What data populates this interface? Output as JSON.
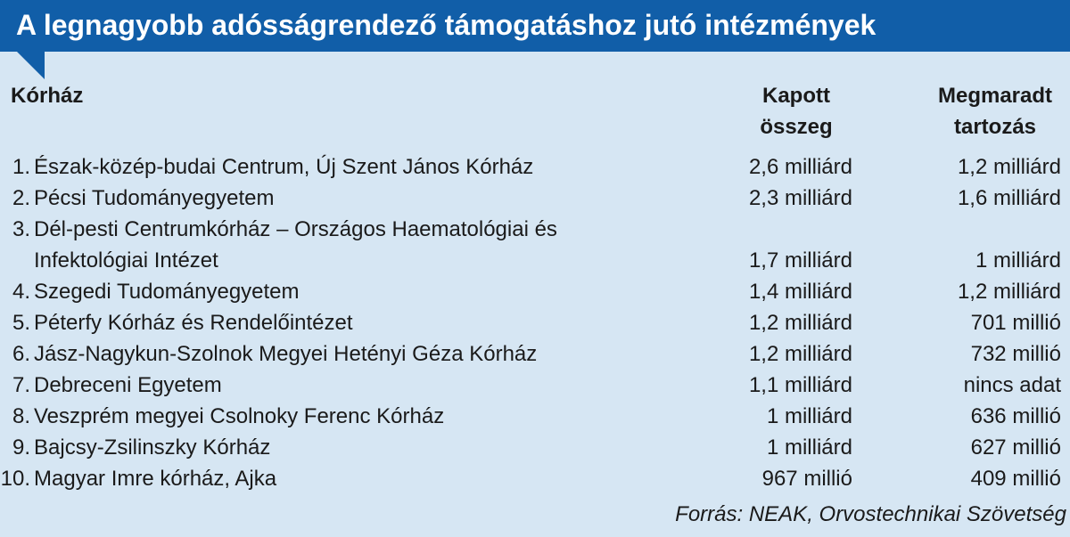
{
  "header": {
    "title": "A legnagyobb adósságrendező támogatáshoz jutó intézmények"
  },
  "table": {
    "columns": [
      [
        "Kórház"
      ],
      [
        "Kapott",
        "összeg"
      ],
      [
        "Megmaradt",
        "tartozás"
      ]
    ],
    "rows": [
      [
        "1.",
        "Észak-közép-budai Centrum, Új Szent János Kórház",
        "2,6 milliárd",
        "1,2 milliárd"
      ],
      [
        "2.",
        "Pécsi Tudományegyetem",
        "2,3 milliárd",
        "1,6 milliárd"
      ],
      [
        "3.",
        [
          "Dél-pesti Centrumkórház – Országos Haematológiai és",
          "Infektológiai Intézet"
        ],
        "1,7 milliárd",
        "1 milliárd"
      ],
      [
        "4.",
        "Szegedi Tudományegyetem",
        "1,4 milliárd",
        "1,2 milliárd"
      ],
      [
        "5.",
        "Péterfy Kórház és Rendelőintézet",
        "1,2 milliárd",
        "701 millió"
      ],
      [
        "6.",
        "Jász-Nagykun-Szolnok Megyei Hetényi Géza Kórház",
        "1,2 milliárd",
        "732 millió"
      ],
      [
        "7.",
        "Debreceni Egyetem",
        "1,1 milliárd",
        "nincs adat"
      ],
      [
        "8.",
        "Veszprém megyei Csolnoky Ferenc Kórház",
        "1 milliárd",
        "636 millió"
      ],
      [
        "9.",
        "Bajcsy-Zsilinszky Kórház",
        "1 milliárd",
        "627 millió"
      ],
      [
        "10.",
        "Magyar Imre kórház, Ajka",
        "967 millió",
        "409 millió"
      ]
    ]
  },
  "footer": {
    "source": "Forrás: NEAK, Orvostechnikai Szövetség"
  }
}
